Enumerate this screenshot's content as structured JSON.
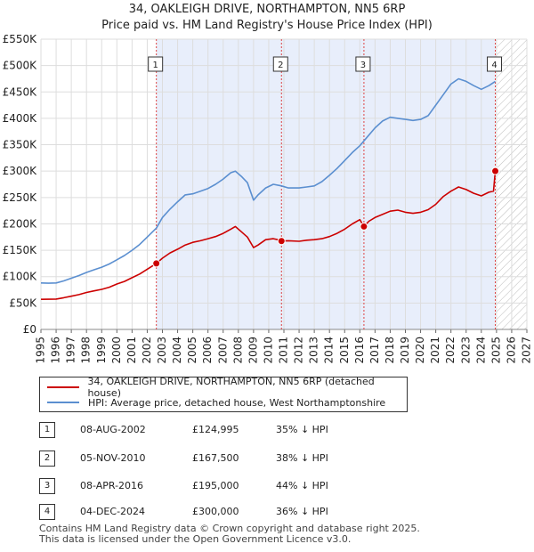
{
  "chart_data": {
    "type": "line",
    "title": "34, OAKLEIGH DRIVE, NORTHAMPTON, NN5 6RP",
    "subtitle": "Price paid vs. HM Land Registry's House Price Index (HPI)",
    "xlim": [
      1995,
      2027
    ],
    "ylim": [
      0,
      550000
    ],
    "x_ticks": [
      "1995",
      "1996",
      "1997",
      "1998",
      "1999",
      "2000",
      "2001",
      "2002",
      "2003",
      "2004",
      "2005",
      "2006",
      "2007",
      "2008",
      "2009",
      "2010",
      "2011",
      "2012",
      "2013",
      "2014",
      "2015",
      "2016",
      "2017",
      "2018",
      "2019",
      "2020",
      "2021",
      "2022",
      "2023",
      "2024",
      "2025",
      "2026",
      "2027"
    ],
    "y_ticks": [
      {
        "value": 0,
        "label": "£0"
      },
      {
        "value": 50000,
        "label": "£50K"
      },
      {
        "value": 100000,
        "label": "£100K"
      },
      {
        "value": 150000,
        "label": "£150K"
      },
      {
        "value": 200000,
        "label": "£200K"
      },
      {
        "value": 250000,
        "label": "£250K"
      },
      {
        "value": 300000,
        "label": "£300K"
      },
      {
        "value": 350000,
        "label": "£350K"
      },
      {
        "value": 400000,
        "label": "£400K"
      },
      {
        "value": 450000,
        "label": "£450K"
      },
      {
        "value": 500000,
        "label": "£500K"
      },
      {
        "value": 550000,
        "label": "£550K"
      }
    ],
    "shaded_region": [
      2002.6,
      2024.92
    ],
    "future_hatch_start": 2024.92,
    "series": [
      {
        "name": "34, OAKLEIGH DRIVE, NORTHAMPTON, NN5 6RP (detached house)",
        "color": "#cc0000",
        "points": [
          [
            1995.0,
            57000
          ],
          [
            1996.0,
            57500
          ],
          [
            1996.5,
            60000
          ],
          [
            1997.0,
            63000
          ],
          [
            1997.5,
            66000
          ],
          [
            1998.0,
            70000
          ],
          [
            1998.5,
            73000
          ],
          [
            1999.0,
            76000
          ],
          [
            1999.5,
            80000
          ],
          [
            2000.0,
            86000
          ],
          [
            2000.5,
            91000
          ],
          [
            2001.0,
            98000
          ],
          [
            2001.5,
            105000
          ],
          [
            2002.0,
            114000
          ],
          [
            2002.6,
            124995
          ],
          [
            2003.0,
            135000
          ],
          [
            2003.5,
            145000
          ],
          [
            2004.0,
            152000
          ],
          [
            2004.5,
            160000
          ],
          [
            2005.0,
            165000
          ],
          [
            2005.5,
            168000
          ],
          [
            2006.0,
            172000
          ],
          [
            2006.5,
            176000
          ],
          [
            2007.0,
            182000
          ],
          [
            2007.5,
            190000
          ],
          [
            2007.8,
            195000
          ],
          [
            2008.2,
            185000
          ],
          [
            2008.6,
            175000
          ],
          [
            2009.0,
            155000
          ],
          [
            2009.3,
            160000
          ],
          [
            2009.8,
            170000
          ],
          [
            2010.3,
            172000
          ],
          [
            2010.6,
            170000
          ],
          [
            2010.84,
            167500
          ],
          [
            2011.3,
            168000
          ],
          [
            2012.0,
            167000
          ],
          [
            2012.5,
            169000
          ],
          [
            2013.0,
            170000
          ],
          [
            2013.5,
            172000
          ],
          [
            2014.0,
            176000
          ],
          [
            2014.5,
            182000
          ],
          [
            2015.0,
            190000
          ],
          [
            2015.5,
            200000
          ],
          [
            2016.0,
            208000
          ],
          [
            2016.27,
            195000
          ],
          [
            2016.6,
            205000
          ],
          [
            2017.0,
            212000
          ],
          [
            2017.5,
            218000
          ],
          [
            2018.0,
            224000
          ],
          [
            2018.5,
            226000
          ],
          [
            2019.0,
            222000
          ],
          [
            2019.5,
            220000
          ],
          [
            2020.0,
            222000
          ],
          [
            2020.5,
            227000
          ],
          [
            2021.0,
            237000
          ],
          [
            2021.5,
            252000
          ],
          [
            2022.0,
            262000
          ],
          [
            2022.5,
            270000
          ],
          [
            2023.0,
            265000
          ],
          [
            2023.5,
            258000
          ],
          [
            2024.0,
            253000
          ],
          [
            2024.5,
            260000
          ],
          [
            2024.8,
            262000
          ],
          [
            2024.92,
            300000
          ],
          [
            2025.0,
            300000
          ]
        ]
      },
      {
        "name": "HPI: Average price, detached house, West Northamptonshire",
        "color": "#5b8fd0",
        "points": [
          [
            1995.0,
            88000
          ],
          [
            1995.5,
            87500
          ],
          [
            1996.0,
            88000
          ],
          [
            1996.5,
            92000
          ],
          [
            1997.0,
            97000
          ],
          [
            1997.5,
            102000
          ],
          [
            1998.0,
            108000
          ],
          [
            1998.5,
            113000
          ],
          [
            1999.0,
            118000
          ],
          [
            1999.5,
            124000
          ],
          [
            2000.0,
            132000
          ],
          [
            2000.5,
            140000
          ],
          [
            2001.0,
            150000
          ],
          [
            2001.5,
            161000
          ],
          [
            2002.0,
            175000
          ],
          [
            2002.6,
            192000
          ],
          [
            2003.0,
            212000
          ],
          [
            2003.5,
            228000
          ],
          [
            2004.0,
            242000
          ],
          [
            2004.5,
            255000
          ],
          [
            2005.0,
            257000
          ],
          [
            2005.5,
            262000
          ],
          [
            2006.0,
            267000
          ],
          [
            2006.5,
            275000
          ],
          [
            2007.0,
            285000
          ],
          [
            2007.5,
            297000
          ],
          [
            2007.8,
            300000
          ],
          [
            2008.2,
            290000
          ],
          [
            2008.6,
            278000
          ],
          [
            2009.0,
            245000
          ],
          [
            2009.3,
            255000
          ],
          [
            2009.8,
            268000
          ],
          [
            2010.3,
            275000
          ],
          [
            2010.84,
            272000
          ],
          [
            2011.3,
            268000
          ],
          [
            2012.0,
            268000
          ],
          [
            2012.5,
            270000
          ],
          [
            2013.0,
            272000
          ],
          [
            2013.5,
            280000
          ],
          [
            2014.0,
            292000
          ],
          [
            2014.5,
            305000
          ],
          [
            2015.0,
            320000
          ],
          [
            2015.5,
            335000
          ],
          [
            2016.0,
            348000
          ],
          [
            2016.5,
            365000
          ],
          [
            2017.0,
            382000
          ],
          [
            2017.5,
            395000
          ],
          [
            2018.0,
            402000
          ],
          [
            2018.5,
            400000
          ],
          [
            2019.0,
            398000
          ],
          [
            2019.5,
            396000
          ],
          [
            2020.0,
            398000
          ],
          [
            2020.5,
            405000
          ],
          [
            2021.0,
            425000
          ],
          [
            2021.5,
            445000
          ],
          [
            2022.0,
            465000
          ],
          [
            2022.5,
            475000
          ],
          [
            2023.0,
            470000
          ],
          [
            2023.5,
            462000
          ],
          [
            2024.0,
            455000
          ],
          [
            2024.5,
            462000
          ],
          [
            2024.92,
            470000
          ]
        ]
      }
    ],
    "markers": [
      {
        "label": "1",
        "x": 2002.6,
        "y": 124995
      },
      {
        "label": "2",
        "x": 2010.84,
        "y": 167500
      },
      {
        "label": "3",
        "x": 2016.27,
        "y": 195000
      },
      {
        "label": "4",
        "x": 2024.92,
        "y": 300000
      }
    ]
  },
  "legend": [
    {
      "label": "34, OAKLEIGH DRIVE, NORTHAMPTON, NN5 6RP (detached house)",
      "color": "#cc0000"
    },
    {
      "label": "HPI: Average price, detached house, West Northamptonshire",
      "color": "#5b8fd0"
    }
  ],
  "transactions": [
    {
      "num": "1",
      "date": "08-AUG-2002",
      "price": "£124,995",
      "hpi": "35% ↓ HPI"
    },
    {
      "num": "2",
      "date": "05-NOV-2010",
      "price": "£167,500",
      "hpi": "38% ↓ HPI"
    },
    {
      "num": "3",
      "date": "08-APR-2016",
      "price": "£195,000",
      "hpi": "44% ↓ HPI"
    },
    {
      "num": "4",
      "date": "04-DEC-2024",
      "price": "£300,000",
      "hpi": "36% ↓ HPI"
    }
  ],
  "footer": {
    "line1": "Contains HM Land Registry data © Crown copyright and database right 2025.",
    "line2": "This data is licensed under the Open Government Licence v3.0."
  }
}
